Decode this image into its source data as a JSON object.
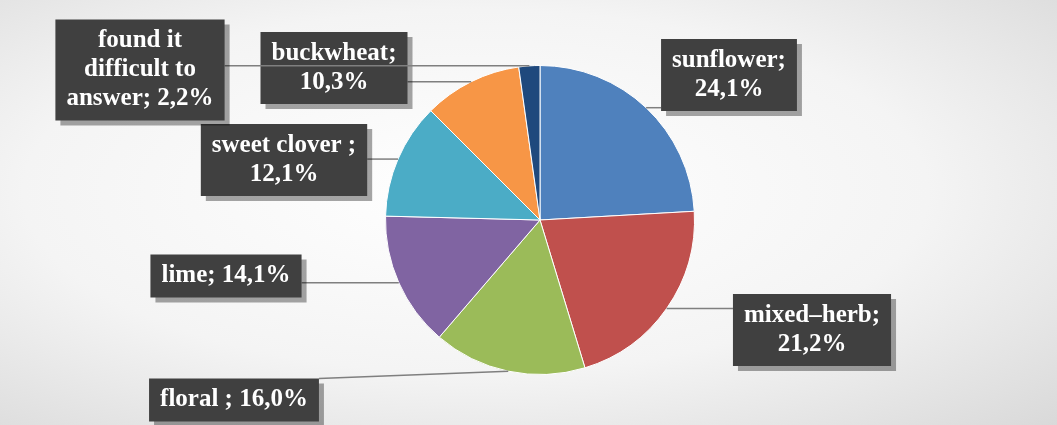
{
  "chart_data": {
    "type": "pie",
    "categories": [
      "sunflower",
      "mixed–herb",
      "floral ",
      "lime",
      "sweet clover ",
      "buckwheat",
      "found it difficult to answer"
    ],
    "values": [
      24.1,
      21.2,
      16.0,
      14.1,
      12.1,
      10.3,
      2.2
    ],
    "colors": [
      "#4f81bd",
      "#c0504d",
      "#9bbb59",
      "#8064a2",
      "#4bacc6",
      "#f79646",
      "#1f497d"
    ],
    "value_labels": [
      "; 24,1%",
      "; 21,2%",
      "; 16,0%",
      "; 14,1%",
      "; 12,1%",
      "; 10,3%",
      "; 2,2%"
    ]
  }
}
